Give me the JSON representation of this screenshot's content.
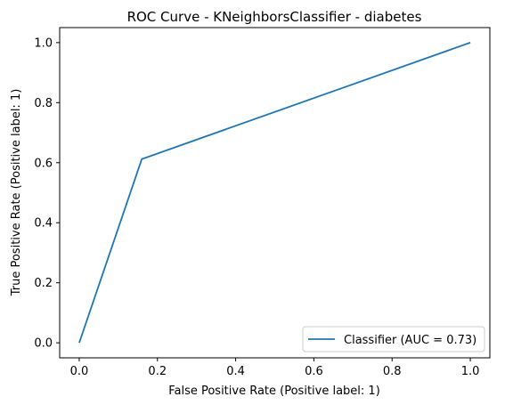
{
  "chart_data": {
    "type": "line",
    "title": "ROC Curve - KNeighborsClassifier - diabetes",
    "xlabel": "False Positive Rate (Positive label: 1)",
    "ylabel": "True Positive Rate (Positive label: 1)",
    "xlim": [
      -0.05,
      1.05
    ],
    "ylim": [
      -0.05,
      1.05
    ],
    "xticks": [
      0.0,
      0.2,
      0.4,
      0.6,
      0.8,
      1.0
    ],
    "yticks": [
      0.0,
      0.2,
      0.4,
      0.6,
      0.8,
      1.0
    ],
    "grid": false,
    "legend_position": "lower-right",
    "series": [
      {
        "name": "Classifier (AUC = 0.73)",
        "color": "#1f77b4",
        "x": [
          0.0,
          0.16,
          1.0
        ],
        "y": [
          0.0,
          0.612,
          1.0
        ]
      }
    ]
  }
}
